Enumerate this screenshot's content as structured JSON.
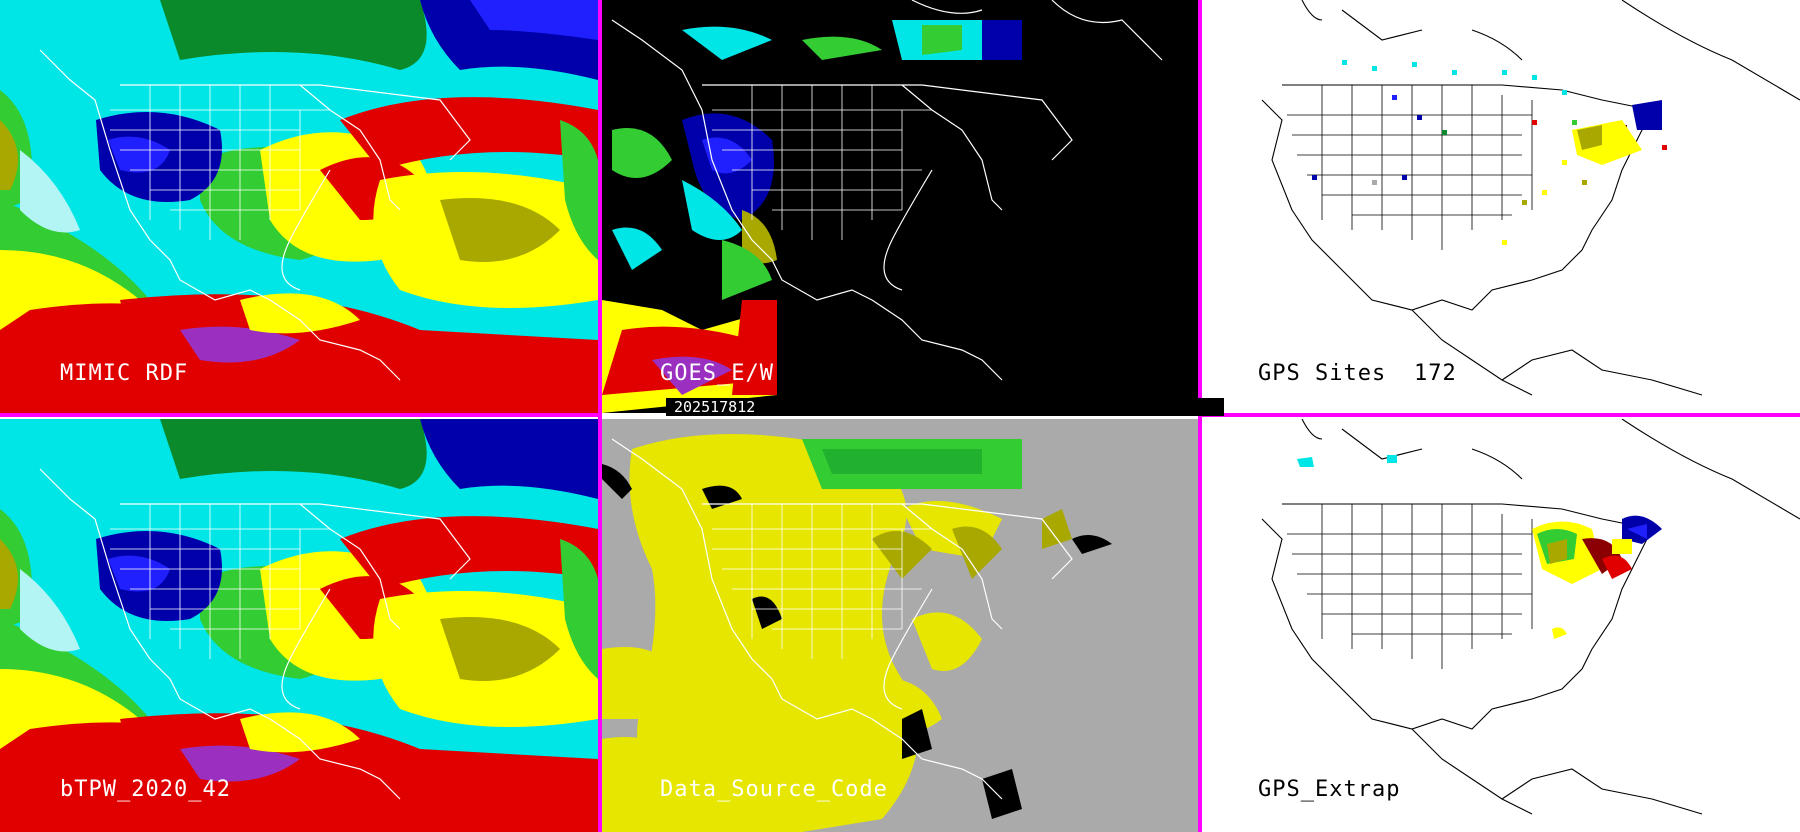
{
  "panels": [
    {
      "id": "mimic",
      "label": "MIMIC RDF",
      "bg": "#00ff66"
    },
    {
      "id": "goes",
      "label": "GOES_E/W",
      "bg": "#000000"
    },
    {
      "id": "gps-sites",
      "label": "GPS Sites",
      "count": "172",
      "bg": "#ffffff"
    },
    {
      "id": "btpw",
      "label": "bTPW_2020_42",
      "bg": "#00ff66"
    },
    {
      "id": "source",
      "label": "Data_Source_Code",
      "bg": "#aaaaaa"
    },
    {
      "id": "extrap",
      "label": "GPS_Extrap",
      "bg": "#ffffff"
    }
  ],
  "timestamp": "202517812",
  "colors": {
    "divider": "#ff00ff",
    "cyan": "#00e6e6",
    "light_cyan": "#b3f5f5",
    "green": "#33cc33",
    "dark_green": "#0a8a2a",
    "olive": "#a8a800",
    "yellow": "#ffff00",
    "dark_red": "#8b0000",
    "red": "#e00000",
    "purple": "#9b30c0",
    "navy": "#0000aa",
    "blue": "#2020ff",
    "gray": "#aaaaaa"
  },
  "icons": [
    "coastline-outline",
    "state-boundaries"
  ]
}
